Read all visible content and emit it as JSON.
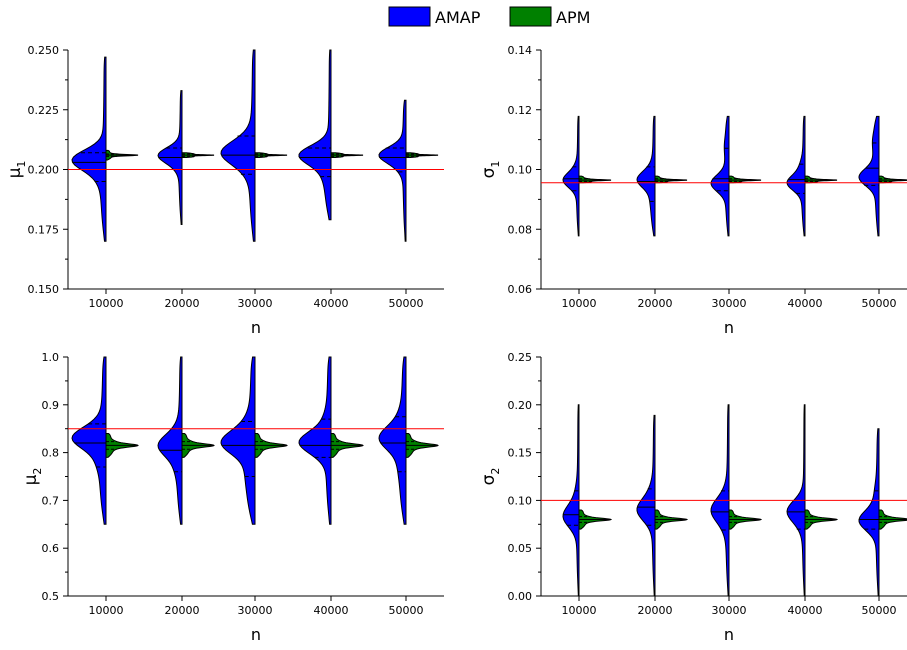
{
  "legend": [
    {
      "label": "AMAP",
      "color": "#0000ff"
    },
    {
      "label": "APM",
      "color": "#008000"
    }
  ],
  "chart_data": [
    {
      "type": "violin",
      "panel": "top-left",
      "ylabel": "μ",
      "ylabel_sub": "1",
      "xlabel": "n",
      "categories": [
        "10000",
        "20000",
        "30000",
        "40000",
        "50000"
      ],
      "ylim": [
        0.15,
        0.25
      ],
      "yticks": [
        "0.150",
        "0.175",
        "0.200",
        "0.225",
        "0.250"
      ],
      "reference_line": 0.2,
      "series": [
        {
          "name": "AMAP",
          "min": [
            0.17,
            0.177,
            0.17,
            0.179,
            0.17
          ],
          "max": [
            0.247,
            0.233,
            0.25,
            0.25,
            0.229
          ],
          "q1": [
            0.195,
            0.2,
            0.198,
            0.197,
            0.199
          ],
          "median": [
            0.203,
            0.205,
            0.206,
            0.205,
            0.205
          ],
          "q3": [
            0.207,
            0.209,
            0.214,
            0.209,
            0.209
          ],
          "mode": [
            0.204,
            0.206,
            0.207,
            0.206,
            0.206
          ]
        },
        {
          "name": "APM",
          "min": [
            0.204,
            0.205,
            0.205,
            0.205,
            0.205
          ],
          "max": [
            0.208,
            0.207,
            0.207,
            0.207,
            0.207
          ],
          "q1": [
            0.2055,
            0.2055,
            0.2055,
            0.2055,
            0.2055
          ],
          "median": [
            0.206,
            0.206,
            0.206,
            0.206,
            0.206
          ],
          "q3": [
            0.2065,
            0.2065,
            0.2065,
            0.2065,
            0.2065
          ]
        }
      ]
    },
    {
      "type": "violin",
      "panel": "top-right",
      "ylabel": "σ",
      "ylabel_sub": "1",
      "xlabel": "n",
      "categories": [
        "10000",
        "20000",
        "30000",
        "40000",
        "50000"
      ],
      "ylim": [
        0.06,
        0.15
      ],
      "yticks": [
        "0.06",
        "0.08",
        "0.10",
        "0.12",
        "0.14"
      ],
      "reference_line": 0.1,
      "series": [
        {
          "name": "AMAP",
          "min": [
            0.08,
            0.08,
            0.08,
            0.08,
            0.08
          ],
          "max": [
            0.125,
            0.125,
            0.125,
            0.125,
            0.125
          ],
          "q1": [
            0.097,
            0.093,
            0.097,
            0.096,
            0.099
          ],
          "median": [
            0.1015,
            0.1005,
            0.1015,
            0.1012,
            0.1055
          ],
          "q3": [
            0.106,
            0.106,
            0.113,
            0.107,
            0.115
          ],
          "mode": [
            0.101,
            0.101,
            0.1,
            0.1,
            0.102
          ]
        },
        {
          "name": "APM",
          "min": [
            0.1,
            0.1,
            0.1,
            0.1,
            0.1
          ],
          "max": [
            0.1025,
            0.1025,
            0.1025,
            0.1025,
            0.1025
          ],
          "q1": [
            0.1005,
            0.1005,
            0.1005,
            0.1005,
            0.1005
          ],
          "median": [
            0.101,
            0.101,
            0.101,
            0.101,
            0.101
          ],
          "q3": [
            0.1015,
            0.1015,
            0.1015,
            0.1015,
            0.1015
          ]
        }
      ]
    },
    {
      "type": "violin",
      "panel": "bottom-left",
      "ylabel": "μ",
      "ylabel_sub": "2",
      "xlabel": "n",
      "categories": [
        "10000",
        "20000",
        "30000",
        "40000",
        "50000"
      ],
      "ylim": [
        0.5,
        1.0
      ],
      "yticks": [
        "0.5",
        "0.6",
        "0.7",
        "0.8",
        "0.9",
        "1.0"
      ],
      "reference_line": 0.85,
      "series": [
        {
          "name": "AMAP",
          "min": [
            0.65,
            0.65,
            0.65,
            0.65,
            0.65
          ],
          "max": [
            1.0,
            1.0,
            1.0,
            1.0,
            1.0
          ],
          "q1": [
            0.77,
            0.76,
            0.75,
            0.79,
            0.76
          ],
          "median": [
            0.82,
            0.805,
            0.815,
            0.815,
            0.82
          ],
          "q3": [
            0.86,
            0.85,
            0.865,
            0.87,
            0.875
          ],
          "mode": [
            0.83,
            0.815,
            0.82,
            0.825,
            0.83
          ]
        },
        {
          "name": "APM",
          "min": [
            0.79,
            0.79,
            0.79,
            0.79,
            0.79
          ],
          "max": [
            0.84,
            0.84,
            0.84,
            0.84,
            0.84
          ],
          "q1": [
            0.807,
            0.807,
            0.807,
            0.807,
            0.807
          ],
          "median": [
            0.815,
            0.815,
            0.815,
            0.815,
            0.815
          ],
          "q3": [
            0.823,
            0.823,
            0.823,
            0.823,
            0.823
          ]
        }
      ]
    },
    {
      "type": "violin",
      "panel": "bottom-right",
      "ylabel": "σ",
      "ylabel_sub": "2",
      "xlabel": "n",
      "categories": [
        "10000",
        "20000",
        "30000",
        "40000",
        "50000"
      ],
      "ylim": [
        0.0,
        0.25
      ],
      "yticks": [
        "0.00",
        "0.05",
        "0.10",
        "0.15",
        "0.20",
        "0.25"
      ],
      "reference_line": 0.1,
      "series": [
        {
          "name": "AMAP",
          "min": [
            0.0,
            0.0,
            0.0,
            0.0,
            0.0
          ],
          "max": [
            0.2,
            0.189,
            0.2,
            0.2,
            0.175
          ],
          "q1": [
            0.074,
            0.074,
            0.069,
            0.07,
            0.07
          ],
          "median": [
            0.085,
            0.093,
            0.088,
            0.088,
            0.08
          ],
          "q3": [
            0.11,
            0.112,
            0.11,
            0.1,
            0.11
          ],
          "mode": [
            0.084,
            0.09,
            0.09,
            0.088,
            0.08
          ]
        },
        {
          "name": "APM",
          "min": [
            0.07,
            0.07,
            0.07,
            0.07,
            0.07
          ],
          "max": [
            0.09,
            0.09,
            0.09,
            0.09,
            0.09
          ],
          "q1": [
            0.077,
            0.077,
            0.077,
            0.077,
            0.077
          ],
          "median": [
            0.08,
            0.08,
            0.08,
            0.08,
            0.08
          ],
          "q3": [
            0.083,
            0.083,
            0.083,
            0.083,
            0.083
          ]
        }
      ]
    }
  ]
}
